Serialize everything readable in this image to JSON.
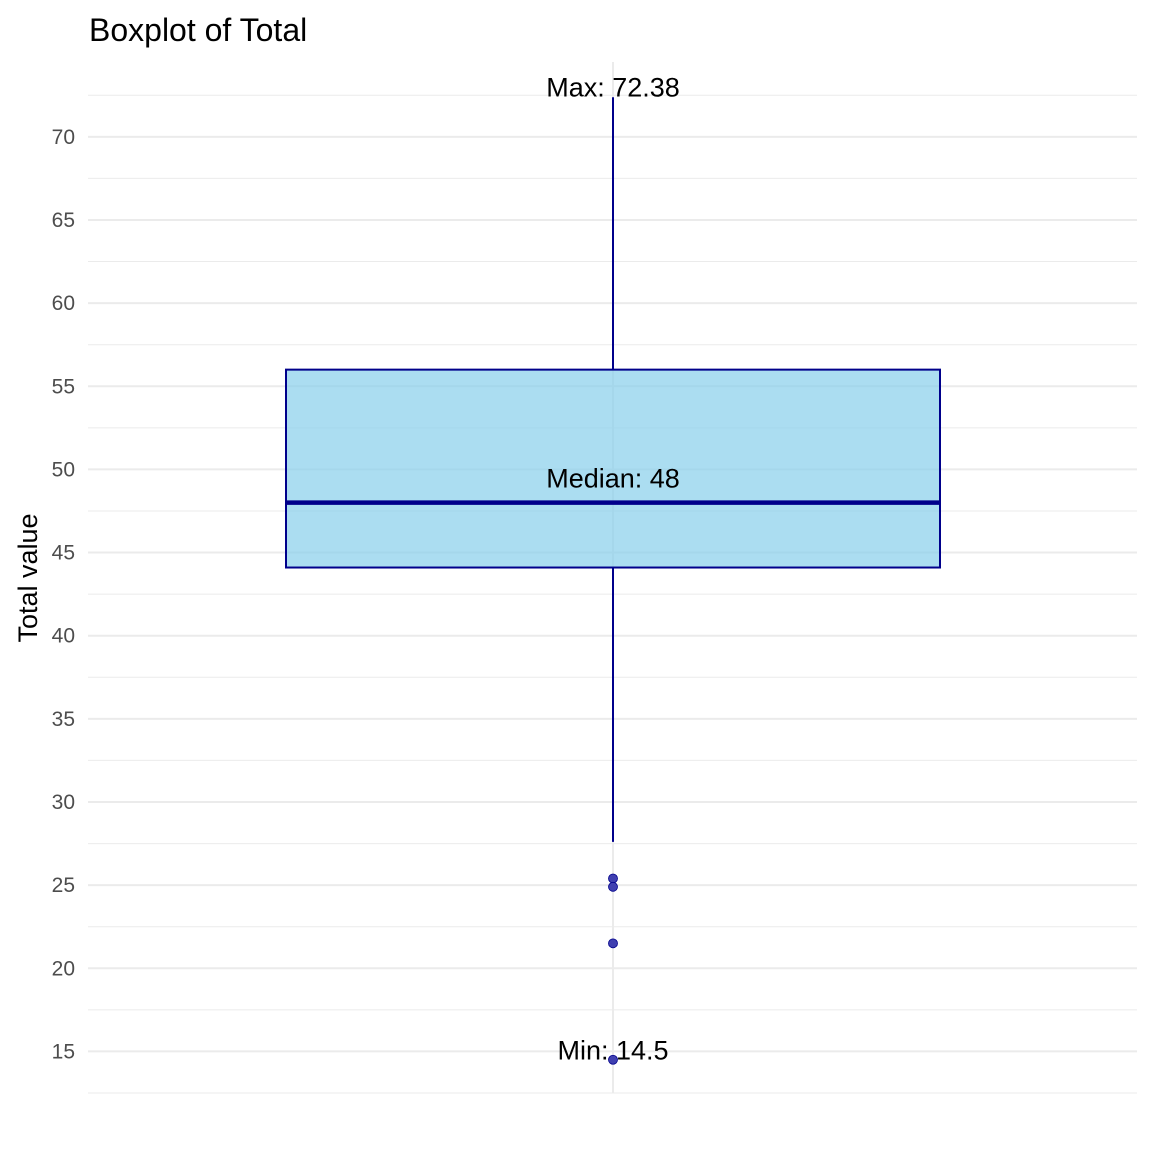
{
  "chart_data": {
    "type": "boxplot",
    "title": "Boxplot of Total",
    "xlabel": "",
    "ylabel": "Total value",
    "ylim": [
      12.5,
      74.5
    ],
    "yticks": [
      15,
      20,
      25,
      30,
      35,
      40,
      45,
      50,
      55,
      60,
      65,
      70
    ],
    "grid": true,
    "box": {
      "q1": 44.1,
      "median": 48,
      "q3": 56,
      "whisker_low": 27.6,
      "whisker_high": 72.38
    },
    "outliers": [
      25.4,
      24.9,
      21.5,
      14.5
    ],
    "annotations": {
      "max_label": "Max:  72.38",
      "median_label": "Median:  48",
      "min_label": "Min:  14.5"
    },
    "colors": {
      "box_fill": "#87ceeb",
      "box_edge": "#00008b",
      "median_line": "#00008b",
      "outlier": "#3f3fb0",
      "grid": "#ebebeb"
    }
  }
}
